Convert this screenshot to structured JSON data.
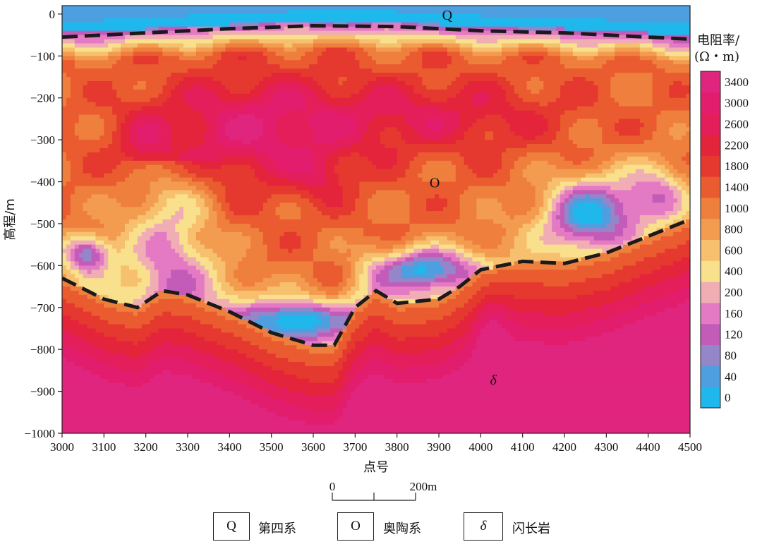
{
  "chart_data": {
    "type": "heatmap",
    "xlabel": "点号",
    "ylabel": "高程/m",
    "xlim": [
      3000,
      4500
    ],
    "ylim": [
      -1000,
      20
    ],
    "x_ticks": [
      3000,
      3100,
      3200,
      3300,
      3400,
      3500,
      3600,
      3700,
      3800,
      3900,
      4000,
      4100,
      4200,
      4300,
      4400,
      4500
    ],
    "y_ticks": [
      0,
      -100,
      -200,
      -300,
      -400,
      -500,
      -600,
      -700,
      -800,
      -900,
      -1000
    ],
    "x_tick_labels": [
      "3000",
      "3100",
      "3200",
      "3300",
      "3400",
      "3500",
      "3600",
      "3700",
      "3800",
      "3900",
      "4000",
      "4100",
      "4200",
      "4300",
      "4400",
      "4500"
    ],
    "y_tick_labels": [
      "0",
      "−100",
      "−200",
      "−300",
      "−400",
      "−500",
      "−600",
      "−700",
      "−800",
      "−900",
      "−1000"
    ],
    "colorbar": {
      "title_line1": "电阻率/",
      "title_line2": "(Ω・m)",
      "levels": [
        0,
        40,
        80,
        120,
        160,
        200,
        400,
        600,
        800,
        1000,
        1400,
        1800,
        2200,
        2600,
        3000,
        3400
      ],
      "labels": [
        "0",
        "40",
        "80",
        "120",
        "160",
        "200",
        "400",
        "600",
        "800",
        "1000",
        "1400",
        "1800",
        "2200",
        "2600",
        "3000",
        "3400"
      ],
      "colors": [
        "#1fb8ec",
        "#4d9fe0",
        "#9585c9",
        "#c35cb8",
        "#e479c4",
        "#f0aeb4",
        "#f9e08c",
        "#f7c06e",
        "#f39b4f",
        "#ef7f3c",
        "#ea5b30",
        "#e5382e",
        "#e4243b",
        "#e41e5a",
        "#e31d6e",
        "#e0257f"
      ]
    },
    "annotations": [
      {
        "text": "Q",
        "x": 3920,
        "y": 0
      },
      {
        "text": "O",
        "x": 3890,
        "y": -400
      },
      {
        "text": "δ",
        "x": 4030,
        "y": -870
      }
    ],
    "boundary_Q_O": {
      "x": [
        3000,
        3200,
        3400,
        3600,
        3800,
        4000,
        4200,
        4400,
        4500
      ],
      "y": [
        -55,
        -45,
        -35,
        -28,
        -30,
        -40,
        -45,
        -55,
        -60
      ]
    },
    "boundary_O_delta": {
      "x": [
        3000,
        3100,
        3180,
        3240,
        3300,
        3400,
        3500,
        3600,
        3650,
        3700,
        3750,
        3800,
        3900,
        3950,
        4000,
        4100,
        4200,
        4300,
        4400,
        4500
      ],
      "y": [
        -630,
        -680,
        -700,
        -660,
        -670,
        -710,
        -760,
        -790,
        -790,
        -700,
        -660,
        -690,
        -680,
        -650,
        -610,
        -590,
        -595,
        -570,
        -530,
        -490
      ]
    },
    "grid": false
  },
  "scale_bar": {
    "start_label": "0",
    "end_label": "200m",
    "length_m": 200
  },
  "legend": {
    "items": [
      {
        "symbol": "Q",
        "label": "第四系"
      },
      {
        "symbol": "O",
        "label": "奥陶系"
      },
      {
        "symbol": "δ",
        "label": "闪长岩"
      }
    ]
  }
}
